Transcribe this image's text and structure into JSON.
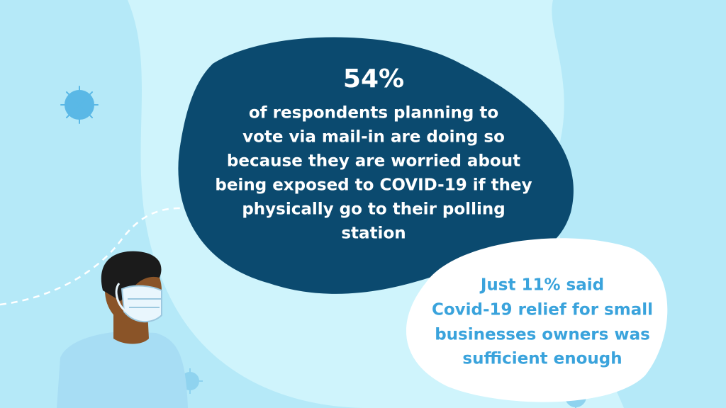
{
  "main_stat": {
    "headline": "54%",
    "lines": [
      "of respondents planning to",
      "vote via mail-in are doing so",
      "because they are worried about",
      "being exposed to COVID-19 if they",
      "physically go to their polling",
      "station"
    ]
  },
  "secondary_stat": {
    "lines": [
      "Just 11% said",
      "Covid-19 relief for small",
      "businesses owners was",
      "sufficient enough"
    ]
  }
}
